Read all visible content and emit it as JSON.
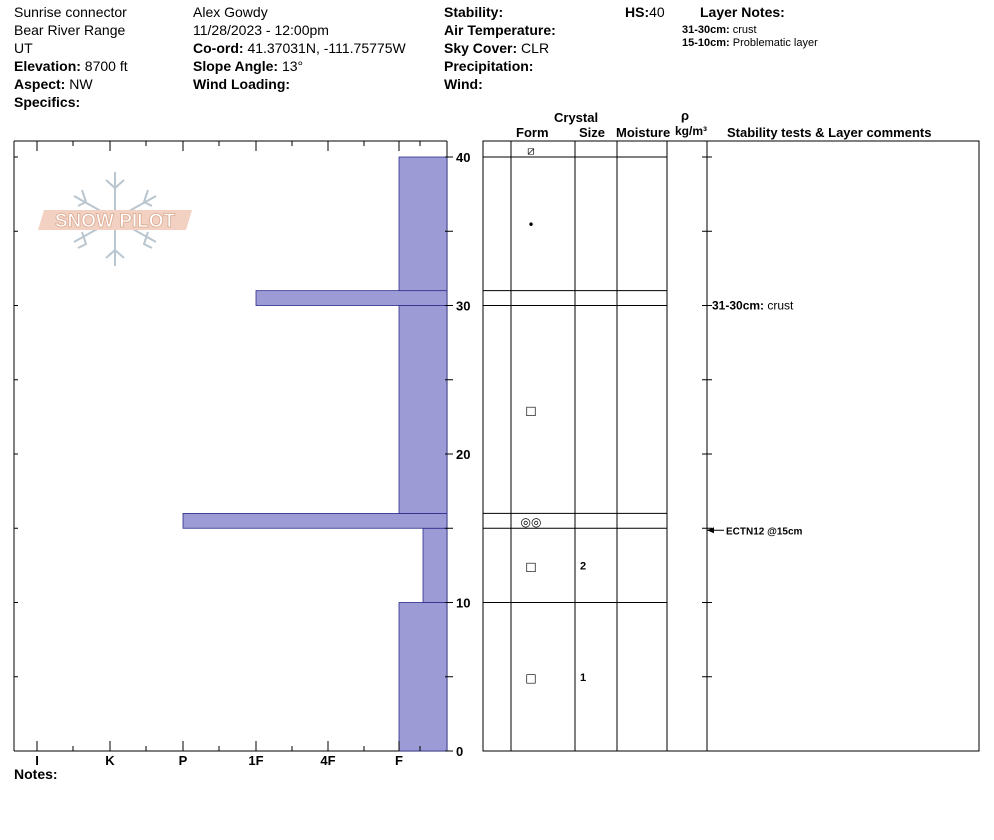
{
  "header": {
    "location": "Sunrise connector",
    "range": "Bear River Range",
    "state": "UT",
    "elevation_label": "Elevation:",
    "elevation_value": "8700 ft",
    "aspect_label": "Aspect:",
    "aspect_value": "NW",
    "specifics_label": "Specifics:",
    "observer": "Alex Gowdy",
    "datetime": "11/28/2023 - 12:00pm",
    "coord_label": "Co-ord:",
    "coord_value": "41.37031N, -111.75775W",
    "slope_label": "Slope Angle:",
    "slope_value": "13°",
    "wind_loading_label": "Wind Loading:",
    "stability_label": "Stability:",
    "air_temp_label": "Air Temperature:",
    "sky_label": "Sky Cover:",
    "sky_value": "CLR",
    "precip_label": "Precipitation:",
    "wind_label": "Wind:",
    "hs_label": "HS:",
    "hs_value": "40",
    "layer_notes_label": "Layer Notes:",
    "layer_notes": [
      {
        "range": "31-30cm:",
        "text": "crust"
      },
      {
        "range": "15-10cm:",
        "text": "Problematic layer"
      }
    ]
  },
  "logo_text": "SNOW PILOT",
  "notes_label": "Notes:",
  "columns": {
    "crystal": "Crystal",
    "form": "Form",
    "size": "Size",
    "moisture": "Moisture",
    "rho": "ρ",
    "density_unit": "kg/m³",
    "comments": "Stability tests & Layer comments"
  },
  "colors": {
    "hardness_fill": "#9d9bd6",
    "hardness_stroke": "#2b2b8a"
  },
  "chart_data": {
    "type": "bar",
    "orientation": "horizontal",
    "y_unit": "cm",
    "ylim": [
      0,
      40
    ],
    "y_ticks": [
      0,
      10,
      20,
      30,
      40
    ],
    "hardness_scale": [
      "I",
      "K",
      "P",
      "1F",
      "4F",
      "F"
    ],
    "hardness_profile": [
      {
        "bottom": 0,
        "top": 10,
        "hardness": "F"
      },
      {
        "bottom": 10,
        "top": 15,
        "hardness": "F-"
      },
      {
        "bottom": 15,
        "top": 16,
        "hardness": "P"
      },
      {
        "bottom": 16,
        "top": 30,
        "hardness": "F"
      },
      {
        "bottom": 30,
        "top": 31,
        "hardness": "1F"
      },
      {
        "bottom": 31,
        "top": 40,
        "hardness": "F"
      }
    ],
    "layer_boundaries": [
      40,
      31,
      30,
      16,
      15,
      10
    ],
    "grain_forms": [
      {
        "depth": 40.5,
        "symbol": "⧄"
      },
      {
        "depth": 35.5,
        "symbol": "•"
      },
      {
        "depth": 23,
        "symbol": "□"
      },
      {
        "depth": 15.5,
        "symbol": "◎◎"
      },
      {
        "depth": 12.5,
        "symbol": "□",
        "size": "2"
      },
      {
        "depth": 5,
        "symbol": "□",
        "size": "1"
      }
    ],
    "comments": [
      {
        "depth": 30,
        "range": "31-30cm:",
        "text": "crust"
      }
    ],
    "stability_tests": [
      {
        "depth": 15,
        "text": "ECTN12 @15cm"
      }
    ]
  }
}
